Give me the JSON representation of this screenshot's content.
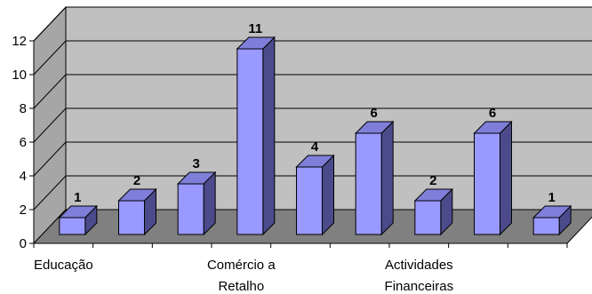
{
  "chart_data": {
    "type": "bar",
    "style": "3d-column",
    "categories": [
      "Educação",
      "",
      "",
      "Comércio a Retalho",
      "",
      "",
      "Actividades Financeiras",
      "",
      ""
    ],
    "category_label_lines": [
      [
        "Educação"
      ],
      [],
      [],
      [
        "Comércio a",
        "Retalho"
      ],
      [],
      [],
      [
        "Actividades",
        "Financeiras"
      ],
      [],
      []
    ],
    "values": [
      1,
      2,
      3,
      11,
      4,
      6,
      2,
      6,
      1
    ],
    "ylim": [
      0,
      12
    ],
    "yticks": [
      0,
      2,
      4,
      6,
      8,
      10,
      12
    ],
    "grid": true,
    "legend": "none",
    "title": "",
    "xlabel": "",
    "ylabel": "",
    "colors": {
      "bar_front": "#9999ff",
      "bar_side": "#4b4b8c",
      "bar_top": "#7f7fd9",
      "floor": "#808080",
      "back_wall": "#c0c0c0",
      "side_wall": "#a6a6a6",
      "grid": "#000000"
    }
  }
}
